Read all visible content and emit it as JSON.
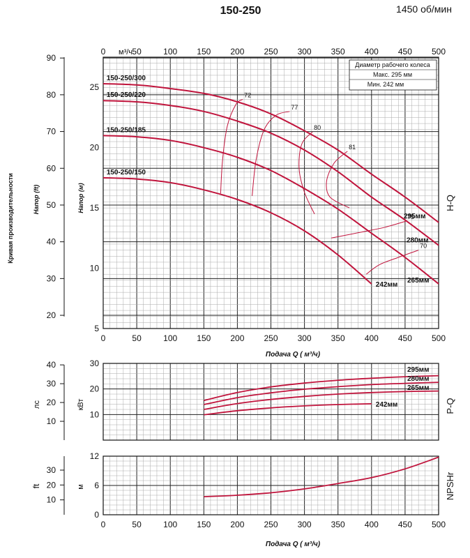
{
  "header": {
    "title": "150-250",
    "speed": "1450 об/мин"
  },
  "side_label": "Кривая производительности",
  "colors": {
    "curve": "#c0143c",
    "grid_major": "#222222",
    "grid_minor": "#aaaaaa"
  },
  "legend": {
    "title": "Диаметр рабочего колеса",
    "max": "Макс. 295 мм",
    "min": "Мин.  242 мм"
  },
  "chart_data": [
    {
      "type": "line",
      "id": "hq",
      "side_title": "H-Q",
      "xlabel_top": "м³/ч",
      "top_ticks": [
        "0",
        "50",
        "100",
        "150",
        "200",
        "250",
        "300",
        "350",
        "400",
        "450",
        "500"
      ],
      "xlim": [
        0,
        500
      ],
      "ylim": [
        5,
        27.5
      ],
      "ylabel": "Напор (м)",
      "y_ticks": [
        5,
        10,
        15,
        20,
        25
      ],
      "ylabel_ft": "Напор (ft)",
      "ft_ticks": [
        20,
        30,
        40,
        50,
        60,
        70,
        80,
        90
      ],
      "series": [
        {
          "name": "150-250/300",
          "end_label": "295мм",
          "x": [
            0,
            50,
            100,
            150,
            200,
            250,
            300,
            350,
            400,
            450,
            500
          ],
          "y": [
            25.3,
            25.2,
            24.9,
            24.5,
            23.8,
            22.8,
            21.4,
            19.8,
            17.8,
            15.9,
            13.8
          ]
        },
        {
          "name": "150-250/220",
          "end_label": "280мм",
          "x": [
            0,
            50,
            100,
            150,
            200,
            250,
            300,
            350,
            400,
            450,
            500
          ],
          "y": [
            23.9,
            23.8,
            23.5,
            23.0,
            22.2,
            21.2,
            19.8,
            18.0,
            15.9,
            14.0,
            11.9
          ]
        },
        {
          "name": "150-250/185",
          "end_label": "265мм",
          "x": [
            0,
            50,
            100,
            150,
            200,
            250,
            300,
            350,
            400,
            450,
            500
          ],
          "y": [
            21.0,
            20.9,
            20.6,
            20.0,
            19.2,
            18.1,
            16.6,
            14.9,
            12.9,
            10.9,
            8.7
          ]
        },
        {
          "name": "150-250/150",
          "end_label": "242мм",
          "x": [
            0,
            50,
            100,
            150,
            200,
            250,
            300,
            350,
            400
          ],
          "y": [
            17.5,
            17.4,
            17.1,
            16.5,
            15.7,
            14.6,
            13.1,
            11.1,
            8.7
          ]
        }
      ],
      "efficiency": [
        {
          "label": "72",
          "x": [
            175,
            178,
            185,
            198,
            208
          ],
          "y": [
            16.2,
            19.0,
            21.8,
            23.6,
            24.0
          ]
        },
        {
          "label": "77",
          "x": [
            222,
            228,
            240,
            258,
            278
          ],
          "y": [
            16.0,
            19.0,
            21.5,
            22.7,
            23.0
          ]
        },
        {
          "label": "80",
          "x": [
            315,
            300,
            292,
            296,
            312
          ],
          "y": [
            14.5,
            16.3,
            18.3,
            20.3,
            21.3
          ]
        },
        {
          "label": "81",
          "x": [
            367,
            338,
            333,
            344,
            364
          ],
          "y": [
            15.0,
            15.9,
            17.2,
            18.7,
            19.7
          ]
        },
        {
          "label": "75",
          "x": [
            340,
            385,
            420,
            451
          ],
          "y": [
            12.5,
            13.0,
            13.4,
            13.9
          ]
        },
        {
          "label": "70",
          "x": [
            392,
            412,
            440,
            470
          ],
          "y": [
            9.5,
            10.3,
            10.9,
            11.5
          ]
        }
      ]
    },
    {
      "type": "line",
      "id": "pq",
      "side_title": "P-Q",
      "xlim": [
        0,
        500
      ],
      "ylim": [
        0,
        30
      ],
      "ylabel": "кВт",
      "y_ticks": [
        10,
        20,
        30
      ],
      "ylabel_hp": "лс",
      "hp_ticks": [
        10,
        20,
        30,
        40
      ],
      "series": [
        {
          "name": "295мм",
          "x": [
            150,
            200,
            250,
            300,
            350,
            400,
            450,
            500
          ],
          "y": [
            15.5,
            18.6,
            20.8,
            22.3,
            23.4,
            24.2,
            24.8,
            25.2
          ]
        },
        {
          "name": "280мм",
          "x": [
            150,
            200,
            250,
            300,
            350,
            400,
            450,
            500
          ],
          "y": [
            13.9,
            16.6,
            18.5,
            19.9,
            20.9,
            21.7,
            22.2,
            22.6
          ]
        },
        {
          "name": "265мм",
          "x": [
            150,
            200,
            250,
            300,
            350,
            400,
            450,
            500
          ],
          "y": [
            12.0,
            14.3,
            15.9,
            17.1,
            18.0,
            18.6,
            19.0,
            19.2
          ]
        },
        {
          "name": "242мм",
          "x": [
            150,
            200,
            250,
            300,
            350,
            400
          ],
          "y": [
            9.9,
            11.5,
            12.6,
            13.4,
            13.9,
            14.2
          ]
        }
      ]
    },
    {
      "type": "line",
      "id": "npsh",
      "side_title": "NPSHr",
      "xlim": [
        0,
        500
      ],
      "ylim": [
        0,
        12
      ],
      "ylabel": "м",
      "y_ticks": [
        0,
        6,
        12
      ],
      "ylabel_ft": "ft",
      "ft_ticks": [
        10,
        20,
        30
      ],
      "series": [
        {
          "name": "NPSHr",
          "x": [
            150,
            200,
            250,
            300,
            350,
            400,
            450,
            500
          ],
          "y": [
            3.7,
            4.0,
            4.5,
            5.3,
            6.4,
            7.6,
            9.4,
            11.8
          ]
        }
      ]
    }
  ],
  "x_axis": {
    "ticks": [
      "0",
      "50",
      "100",
      "150",
      "200",
      "250",
      "300",
      "350",
      "400",
      "450",
      "500"
    ],
    "label": "Подача Q ( м³/ч)"
  }
}
